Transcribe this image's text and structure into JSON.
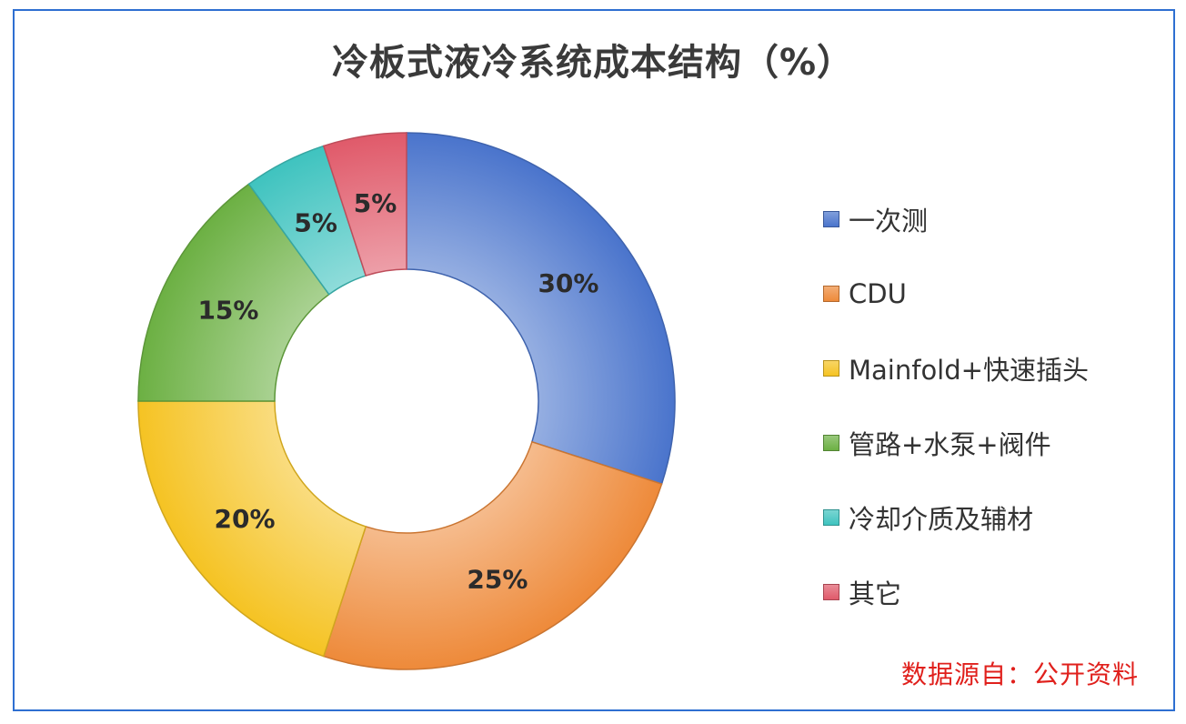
{
  "chart_data": {
    "type": "pie",
    "donut": true,
    "title": "冷板式液冷系统成本结构（%）",
    "categories": [
      "一次测",
      "CDU",
      "Mainfold+快速插头",
      "管路+水泵+阀件",
      "冷却介质及辅材",
      "其它"
    ],
    "values": [
      30,
      25,
      20,
      15,
      5,
      5
    ],
    "data_labels": [
      "30%",
      "25%",
      "20%",
      "15%",
      "5%",
      "5%"
    ],
    "colors": [
      "#4a74cc",
      "#ee8a3a",
      "#f5c323",
      "#6cb043",
      "#3fc3bf",
      "#e05a6a"
    ],
    "legend_position": "right",
    "start_angle": "12 o'clock, clockwise"
  },
  "source_note": "数据源自：公开资料"
}
